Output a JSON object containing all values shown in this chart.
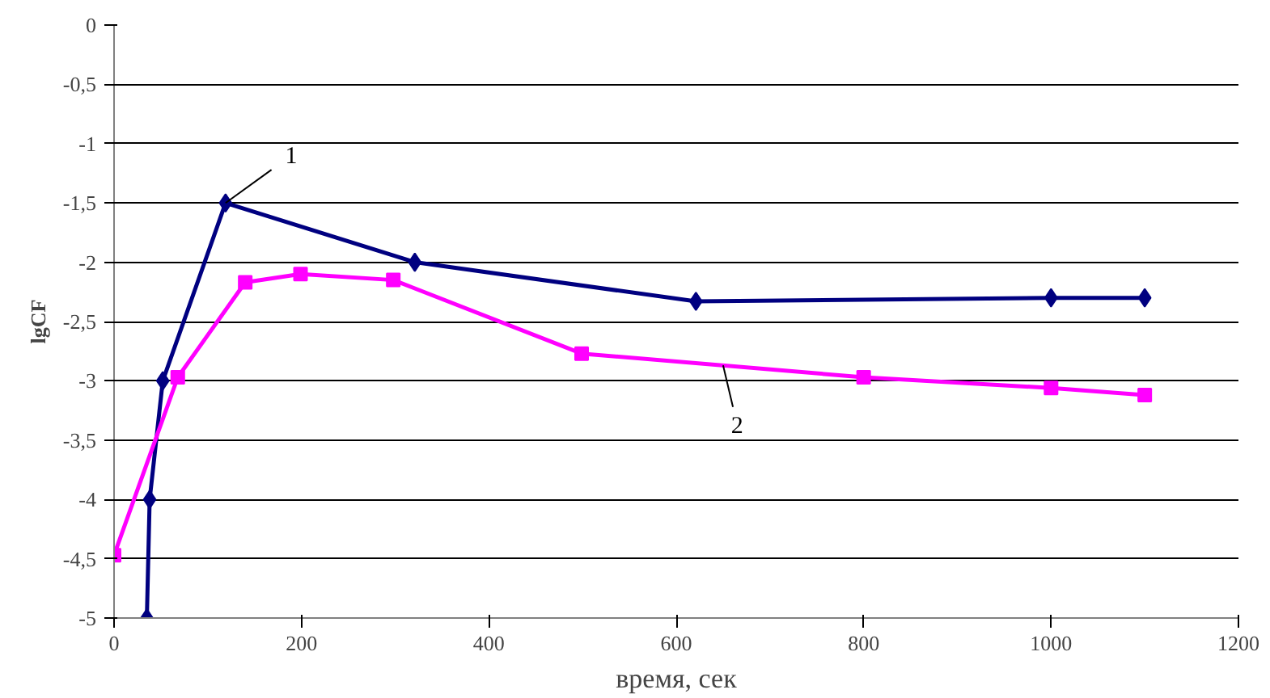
{
  "chart_data": {
    "type": "line",
    "xlabel": "время, сек",
    "ylabel": "lgCF",
    "xlim": [
      0,
      1200
    ],
    "xticks": [
      0,
      200,
      400,
      600,
      800,
      1000,
      1200
    ],
    "ylim": [
      -5,
      0
    ],
    "yticks": [
      {
        "value": -5,
        "label": "-5"
      },
      {
        "value": -4.5,
        "label": "-4,5"
      },
      {
        "value": -4,
        "label": "-4"
      },
      {
        "value": -3.5,
        "label": "-3,5"
      },
      {
        "value": -3,
        "label": "-3"
      },
      {
        "value": -2.5,
        "label": "-2,5"
      },
      {
        "value": -2,
        "label": "-2"
      },
      {
        "value": -1.5,
        "label": "-1,5"
      },
      {
        "value": -1,
        "label": "-1"
      },
      {
        "value": -0.5,
        "label": "-0,5"
      },
      {
        "value": 0,
        "label": "0"
      }
    ],
    "grid": "y",
    "line_style": "solid",
    "series": [
      {
        "color": "#000080",
        "marker": "diamond",
        "x": [
          35,
          38,
          52,
          119,
          321,
          621,
          1000,
          1100
        ],
        "values": [
          -5,
          -4,
          -3,
          -1.5,
          -2,
          -2.33,
          -2.3,
          -2.3
        ]
      },
      {
        "color": "#ff00ff",
        "marker": "square",
        "x": [
          0,
          68,
          140,
          199,
          298,
          499,
          800,
          1000,
          1100
        ],
        "values": [
          -4.47,
          -2.97,
          -2.17,
          -2.1,
          -2.15,
          -2.77,
          -2.97,
          -3.06,
          -3.12
        ]
      }
    ],
    "annotations": [
      {
        "text": "1",
        "x": 119,
        "y": -1.5
      },
      {
        "text": "2",
        "x": 650,
        "y": -2.87
      }
    ]
  }
}
